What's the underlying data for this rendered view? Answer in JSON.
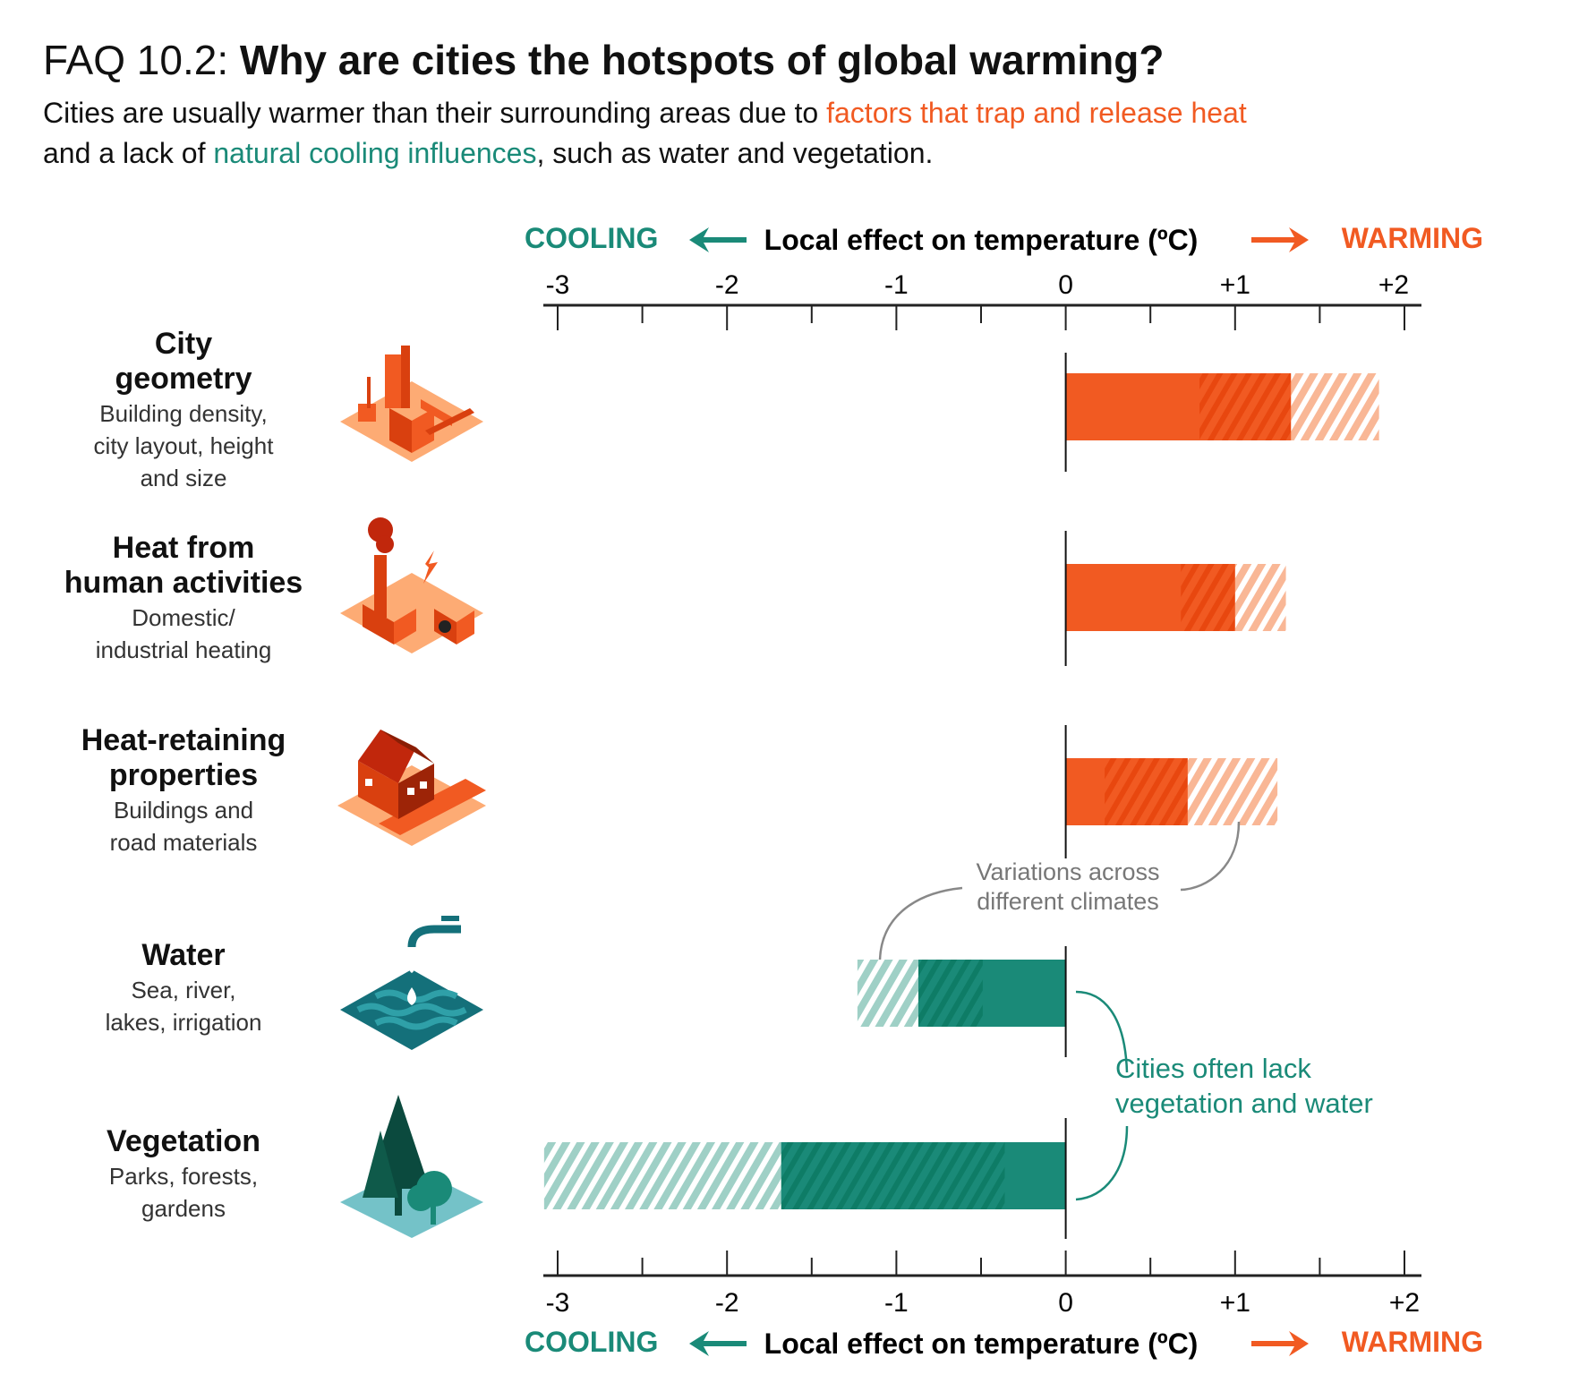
{
  "title": {
    "prefix": "FAQ 10.2: ",
    "main": "Why are cities the hotspots of global warming?"
  },
  "subtitle": {
    "line1_a": "Cities are usually warmer than their surrounding areas due to ",
    "line1_b": "factors that trap and release heat",
    "line2_a": "and a lack of ",
    "line2_b": "natural cooling influences",
    "line2_c": ", such as water and vegetation."
  },
  "colors": {
    "warming": "#f15a22",
    "warming_light": "#f9b796",
    "cooling": "#1a8a78",
    "cooling_light": "#9fd0c6",
    "annotation": "#777777"
  },
  "rows": [
    {
      "title": [
        "City",
        "geometry"
      ],
      "desc": [
        "Building density,",
        "city layout, height",
        "and size"
      ],
      "icon": "city-buildings-icon"
    },
    {
      "title": [
        "Heat from",
        "human activities"
      ],
      "desc": [
        "Domestic/",
        "industrial heating"
      ],
      "icon": "factory-chimney-icon"
    },
    {
      "title": [
        "Heat-retaining",
        "properties"
      ],
      "desc": [
        "Buildings and",
        "road materials"
      ],
      "icon": "house-road-icon"
    },
    {
      "title": [
        "Water"
      ],
      "desc": [
        "Sea, river,",
        "lakes, irrigation"
      ],
      "icon": "water-tap-icon"
    },
    {
      "title": [
        "Vegetation"
      ],
      "desc": [
        "Parks, forests,",
        "gardens"
      ],
      "icon": "trees-icon"
    }
  ],
  "chart_data": {
    "type": "bar",
    "orientation": "horizontal",
    "categories": [
      "City geometry",
      "Heat from human activities",
      "Heat-retaining properties",
      "Water",
      "Vegetation"
    ],
    "series": [
      {
        "style": "solid",
        "values": [
          0.79,
          0.68,
          0.23,
          -0.49,
          -0.36
        ]
      },
      {
        "style": "dark hatched",
        "values": [
          1.33,
          1.0,
          0.72,
          -0.87,
          -1.68
        ]
      },
      {
        "style": "light hatched",
        "values": [
          1.85,
          1.3,
          1.25,
          -1.23,
          -3.08
        ]
      }
    ],
    "xlabel": "Local effect on temperature (ºC)",
    "left_label": "COOLING",
    "right_label": "WARMING",
    "xlim": [
      -3,
      2
    ],
    "xticks": [
      -3,
      -2,
      -1,
      0,
      1,
      2
    ],
    "xtick_labels": [
      "-3",
      "-2",
      "-1",
      "0",
      "+1",
      "+2"
    ],
    "grid": false,
    "annotations": {
      "variations": [
        "Variations across",
        "different climates"
      ],
      "lack": [
        "Cities often lack",
        "vegetation and water"
      ]
    }
  }
}
